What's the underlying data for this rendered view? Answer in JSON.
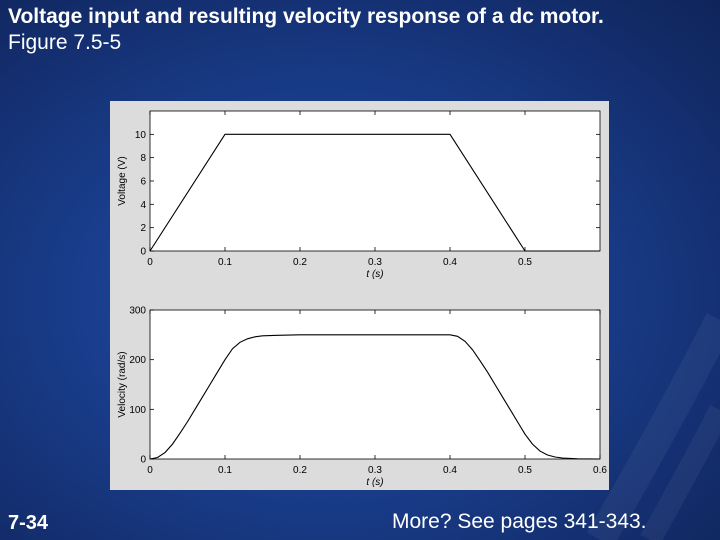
{
  "slide": {
    "title_line1": "Voltage input and resulting velocity response of a dc motor.",
    "title_line2": "Figure 7.5-5",
    "footer_left": "7-34",
    "footer_right": "More? See pages 341-343."
  },
  "colors": {
    "background": "#1a3f8f",
    "figure_bg": "#dcdcdc",
    "plot_bg": "#ffffff",
    "line": "#000000"
  },
  "chart_data": [
    {
      "type": "line",
      "title": "",
      "xlabel": "t (s)",
      "ylabel": "Voltage (V)",
      "xlim": [
        0,
        0.6
      ],
      "ylim": [
        0,
        12
      ],
      "xticks": [
        0,
        0.1,
        0.2,
        0.3,
        0.4,
        0.5
      ],
      "xtick_labels": [
        "0",
        "0.1",
        "0.2",
        "0.3",
        "0.4",
        "0.5"
      ],
      "yticks": [
        0,
        2,
        4,
        6,
        8,
        10
      ],
      "ytick_labels": [
        "0",
        "2",
        "4",
        "6",
        "8",
        "10"
      ],
      "grid": false,
      "series": [
        {
          "x": [
            0,
            0.1,
            0.4,
            0.5,
            0.6
          ],
          "y": [
            0,
            10,
            10,
            0,
            0
          ]
        }
      ]
    },
    {
      "type": "line",
      "title": "",
      "xlabel": "t (s)",
      "ylabel": "Velocity (rad/s)",
      "xlim": [
        0,
        0.6
      ],
      "ylim": [
        0,
        300
      ],
      "xticks": [
        0,
        0.1,
        0.2,
        0.3,
        0.4,
        0.5,
        0.6
      ],
      "xtick_labels": [
        "0",
        "0.1",
        "0.2",
        "0.3",
        "0.4",
        "0.5",
        "0.6"
      ],
      "yticks": [
        0,
        100,
        200,
        300
      ],
      "ytick_labels": [
        "0",
        "100",
        "200",
        "300"
      ],
      "grid": false,
      "series": [
        {
          "x": [
            0,
            0.01,
            0.02,
            0.03,
            0.04,
            0.05,
            0.06,
            0.07,
            0.08,
            0.09,
            0.1,
            0.11,
            0.12,
            0.13,
            0.14,
            0.15,
            0.17,
            0.2,
            0.25,
            0.3,
            0.35,
            0.4,
            0.41,
            0.42,
            0.43,
            0.44,
            0.45,
            0.46,
            0.47,
            0.48,
            0.49,
            0.5,
            0.51,
            0.52,
            0.53,
            0.54,
            0.55,
            0.57,
            0.6
          ],
          "y": [
            0,
            3,
            13,
            30,
            52,
            75,
            100,
            125,
            150,
            175,
            200,
            222,
            235,
            242,
            246,
            248,
            249,
            250,
            250,
            250,
            250,
            250,
            247,
            237,
            220,
            198,
            175,
            150,
            125,
            100,
            75,
            50,
            30,
            16,
            8,
            4,
            2,
            0.5,
            0
          ]
        }
      ]
    }
  ]
}
